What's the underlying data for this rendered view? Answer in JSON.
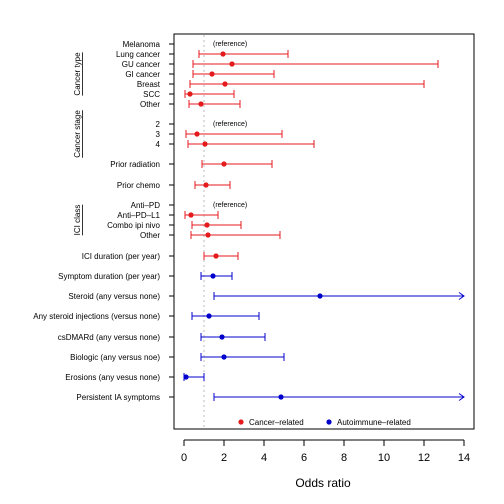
{
  "chart_data": {
    "type": "forest",
    "xlabel": "Odds ratio",
    "xlim": [
      0,
      14
    ],
    "xticks": [
      0,
      2,
      4,
      6,
      8,
      10,
      12,
      14
    ],
    "reference_line": 1,
    "reference_text": "(reference)",
    "colors": {
      "cancer": "#e41a1c",
      "autoimmune": "#0000cc",
      "refline": "#bbbbbb"
    },
    "legend": [
      {
        "name": "Cancer–related",
        "key": "cancer"
      },
      {
        "name": "Autoimmune–related",
        "key": "autoimmune"
      }
    ],
    "legend_position": "bottom",
    "groups": [
      {
        "title": "Cancer type",
        "from": 0,
        "to": 6
      },
      {
        "title": "Cancer stage",
        "from": 7,
        "to": 9
      },
      {
        "title": "ICI class",
        "from": 12,
        "to": 15
      }
    ],
    "rows": [
      {
        "label": "Melanoma",
        "ref": true,
        "cat": "cancer"
      },
      {
        "label": "Lung cancer",
        "or": 1.95,
        "lo": 0.75,
        "hi": 5.2,
        "cat": "cancer"
      },
      {
        "label": "GU cancer",
        "or": 2.4,
        "lo": 0.45,
        "hi": 12.7,
        "cat": "cancer"
      },
      {
        "label": "GI cancer",
        "or": 1.4,
        "lo": 0.45,
        "hi": 4.5,
        "cat": "cancer"
      },
      {
        "label": "Breast",
        "or": 2.05,
        "lo": 0.3,
        "hi": 12.0,
        "cat": "cancer"
      },
      {
        "label": "SCC",
        "or": 0.3,
        "lo": 0.05,
        "hi": 2.5,
        "cat": "cancer"
      },
      {
        "label": "Other",
        "or": 0.85,
        "lo": 0.25,
        "hi": 2.8,
        "cat": "cancer"
      },
      {
        "label": "2",
        "ref": true,
        "cat": "cancer"
      },
      {
        "label": "3",
        "or": 0.65,
        "lo": 0.1,
        "hi": 4.9,
        "cat": "cancer"
      },
      {
        "label": "4",
        "or": 1.05,
        "lo": 0.2,
        "hi": 6.5,
        "cat": "cancer"
      },
      {
        "label": "Prior radiation",
        "or": 2.0,
        "lo": 0.9,
        "hi": 4.4,
        "cat": "cancer"
      },
      {
        "label": "Prior chemo",
        "or": 1.1,
        "lo": 0.55,
        "hi": 2.3,
        "cat": "cancer"
      },
      {
        "label": "Anti–PD",
        "ref": true,
        "cat": "cancer"
      },
      {
        "label": "Anti–PD–L1",
        "or": 0.35,
        "lo": 0.05,
        "hi": 1.7,
        "cat": "cancer"
      },
      {
        "label": "Combo ipi nivo",
        "or": 1.15,
        "lo": 0.4,
        "hi": 2.85,
        "cat": "cancer"
      },
      {
        "label": "Other",
        "or": 1.2,
        "lo": 0.35,
        "hi": 4.8,
        "cat": "cancer"
      },
      {
        "label": "ICI duration (per year)",
        "or": 1.6,
        "lo": 1.0,
        "hi": 2.7,
        "cat": "cancer"
      },
      {
        "label": "Symptom duration (per year)",
        "or": 1.45,
        "lo": 0.85,
        "hi": 2.4,
        "cat": "autoimmune"
      },
      {
        "label": "Steroid (any versus none)",
        "or": 6.8,
        "lo": 1.5,
        "hi": 14.0,
        "arrow": true,
        "cat": "autoimmune"
      },
      {
        "label": "Any steroid injections (versus none)",
        "or": 1.25,
        "lo": 0.4,
        "hi": 3.75,
        "cat": "autoimmune"
      },
      {
        "label": "csDMARd (any versus none)",
        "or": 1.9,
        "lo": 0.85,
        "hi": 4.05,
        "cat": "autoimmune"
      },
      {
        "label": "Biologic (any versus noe)",
        "or": 2.0,
        "lo": 0.85,
        "hi": 5.0,
        "cat": "autoimmune"
      },
      {
        "label": "Erosions (any vesus none)",
        "or": 0.1,
        "lo": 0.0,
        "hi": 1.0,
        "cat": "autoimmune"
      },
      {
        "label": "Persistent IA symptoms",
        "or": 4.85,
        "lo": 1.5,
        "hi": 14.0,
        "arrow": true,
        "cat": "autoimmune"
      }
    ]
  }
}
